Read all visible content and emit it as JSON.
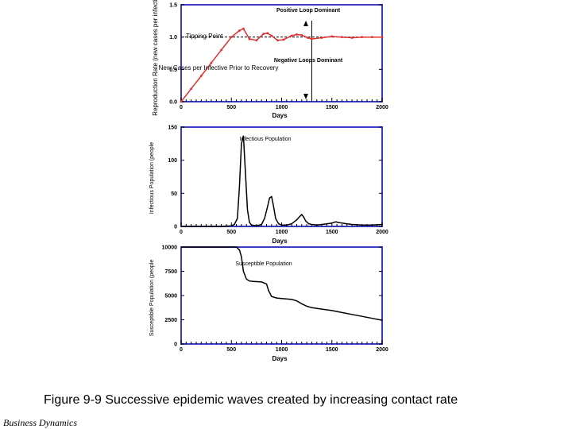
{
  "caption": "Figure 9-9  Successive epidemic waves created by increasing contact rate",
  "footer": "Business Dynamics",
  "colors": {
    "frame": "#3b3bc4",
    "series": "#000000",
    "rate_series": "#e03030"
  },
  "chart_data": [
    {
      "type": "line",
      "id": "reproduction",
      "ylabel": "Reproduction Rate (new cases per infective)",
      "xlabel": "Days",
      "xlim": [
        0,
        2000
      ],
      "ylim": [
        0,
        1.5
      ],
      "xticks": [
        0,
        500,
        1000,
        1500,
        2000
      ],
      "yticks": [
        0.0,
        0.5,
        1.0,
        1.5
      ],
      "ytick_labels": [
        "0.0",
        "0.5",
        "1.0",
        "1.5"
      ],
      "annotations": [
        "Tipping Point",
        "Positive Loop Dominant",
        "Negative Loops Dominant",
        "New Cases per Infective Prior to Recovery"
      ],
      "reference_line": {
        "y": 1.0,
        "style": "dashed"
      },
      "marker_line": {
        "x": 1300
      },
      "series": [
        {
          "x": [
            0,
            100,
            200,
            300,
            400,
            500,
            580,
            620,
            680,
            750,
            820,
            860,
            900,
            960,
            1020,
            1100,
            1150,
            1200,
            1260,
            1300,
            1400,
            1500,
            1600,
            1700,
            1800,
            1900,
            2000
          ],
          "y": [
            0.0,
            0.2,
            0.4,
            0.6,
            0.8,
            1.0,
            1.1,
            1.13,
            0.97,
            0.95,
            1.05,
            1.06,
            1.02,
            0.95,
            0.96,
            1.02,
            1.04,
            1.03,
            0.99,
            0.97,
            0.99,
            1.01,
            1.0,
            0.99,
            1.0,
            1.0,
            1.0
          ]
        }
      ]
    },
    {
      "type": "line",
      "id": "infectious",
      "ylabel": "Infectious Population (people",
      "xlabel": "Days",
      "xlim": [
        0,
        2000
      ],
      "ylim": [
        0,
        150
      ],
      "xticks": [
        0,
        500,
        1000,
        1500,
        2000
      ],
      "yticks": [
        0,
        50,
        100,
        150
      ],
      "annotations": [
        "Infectious Population"
      ],
      "series": [
        {
          "x": [
            0,
            400,
            500,
            530,
            560,
            580,
            600,
            620,
            640,
            660,
            680,
            700,
            750,
            800,
            830,
            860,
            880,
            900,
            920,
            940,
            970,
            1000,
            1050,
            1100,
            1150,
            1180,
            1200,
            1220,
            1240,
            1270,
            1300,
            1350,
            1400,
            1450,
            1500,
            1540,
            1560,
            1600,
            1650,
            1700,
            1800,
            1900,
            2000
          ],
          "y": [
            0,
            0,
            1,
            3,
            12,
            60,
            125,
            137,
            80,
            25,
            6,
            2,
            1,
            3,
            12,
            30,
            43,
            45,
            30,
            12,
            4,
            2,
            2,
            4,
            10,
            15,
            18,
            14,
            8,
            4,
            3,
            2,
            3,
            4,
            5,
            7,
            6,
            5,
            4,
            3,
            2,
            2,
            3
          ]
        }
      ]
    },
    {
      "type": "line",
      "id": "susceptible",
      "ylabel": "Susceptible Population (people",
      "xlabel": "Days",
      "xlim": [
        0,
        2000
      ],
      "ylim": [
        0,
        10000
      ],
      "xticks": [
        0,
        500,
        1000,
        1500,
        2000
      ],
      "yticks": [
        0,
        2500,
        5000,
        7500,
        10000
      ],
      "annotations": [
        "Susceptible Population"
      ],
      "series": [
        {
          "x": [
            0,
            550,
            580,
            600,
            620,
            650,
            680,
            720,
            800,
            850,
            870,
            900,
            950,
            1000,
            1100,
            1150,
            1200,
            1250,
            1300,
            1400,
            1500,
            1600,
            1700,
            1800,
            1900,
            2000
          ],
          "y": [
            10000,
            10000,
            9700,
            9000,
            7500,
            6700,
            6500,
            6450,
            6400,
            6200,
            5500,
            4900,
            4750,
            4700,
            4600,
            4450,
            4150,
            3900,
            3750,
            3600,
            3450,
            3250,
            3050,
            2850,
            2650,
            2450
          ]
        }
      ]
    }
  ]
}
